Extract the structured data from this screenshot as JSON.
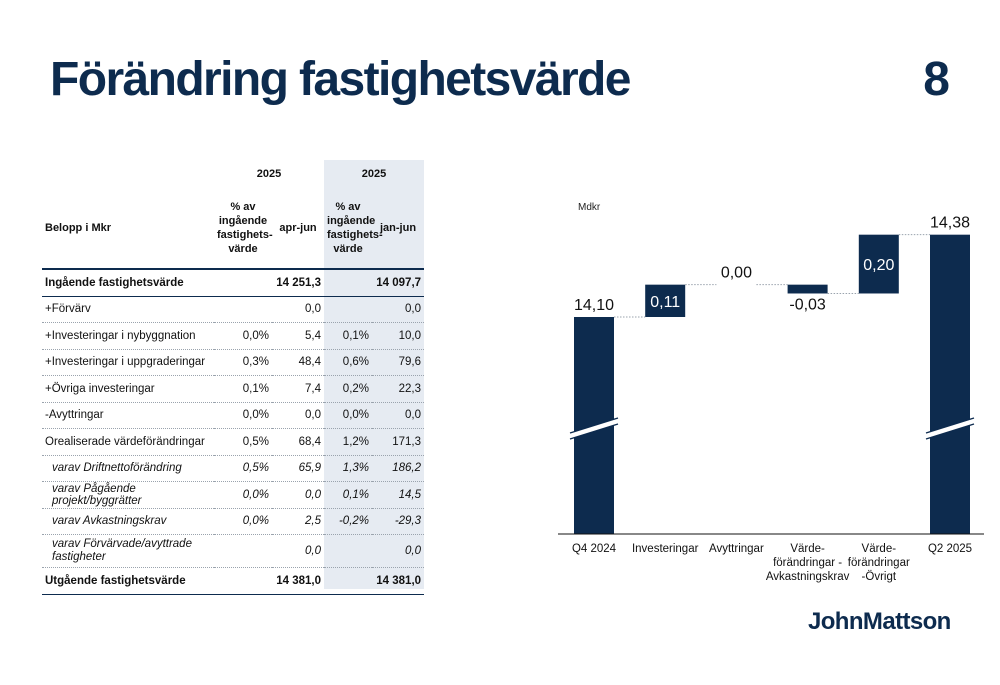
{
  "header": {
    "title": "Förändring fastighetsvärde",
    "page_number": "8"
  },
  "table": {
    "year_left": "2025",
    "year_right": "2025",
    "col_label": "Belopp i Mkr",
    "col_pct_left": "% av ingående fastighets-värde",
    "col_val_left": "apr-jun",
    "col_pct_right": "% av ingående fastighets-värde",
    "col_val_right": "jan-jun",
    "rows": [
      {
        "label": "Ingående fastighetsvärde",
        "pct1": "",
        "val1": "14 251,3",
        "pct2": "",
        "val2": "14 097,7"
      },
      {
        "label": "+Förvärv",
        "pct1": "",
        "val1": "0,0",
        "pct2": "",
        "val2": "0,0"
      },
      {
        "label": "+Investeringar i nybyggnation",
        "pct1": "0,0%",
        "val1": "5,4",
        "pct2": "0,1%",
        "val2": "10,0"
      },
      {
        "label": "+Investeringar i uppgraderingar",
        "pct1": "0,3%",
        "val1": "48,4",
        "pct2": "0,6%",
        "val2": "79,6"
      },
      {
        "label": "+Övriga investeringar",
        "pct1": "0,1%",
        "val1": "7,4",
        "pct2": "0,2%",
        "val2": "22,3"
      },
      {
        "label": "-Avyttringar",
        "pct1": "0,0%",
        "val1": "0,0",
        "pct2": "0,0%",
        "val2": "0,0"
      },
      {
        "label": "Orealiserade värdeförändringar",
        "pct1": "0,5%",
        "val1": "68,4",
        "pct2": "1,2%",
        "val2": "171,3"
      },
      {
        "label": "varav Driftnettoförändring",
        "pct1": "0,5%",
        "val1": "65,9",
        "pct2": "1,3%",
        "val2": "186,2"
      },
      {
        "label": "varav Pågående projekt/byggrätter",
        "pct1": "0,0%",
        "val1": "0,0",
        "pct2": "0,1%",
        "val2": "14,5"
      },
      {
        "label": "varav Avkastningskrav",
        "pct1": "0,0%",
        "val1": "2,5",
        "pct2": "-0,2%",
        "val2": "-29,3"
      },
      {
        "label": "varav Förvärvade/avyttrade fastigheter",
        "pct1": "",
        "val1": "0,0",
        "pct2": "",
        "val2": "0,0"
      },
      {
        "label": "Utgående fastighetsvärde",
        "pct1": "",
        "val1": "14 381,0",
        "pct2": "",
        "val2": "14 381,0"
      }
    ]
  },
  "chart_data": {
    "type": "waterfall",
    "unit_label": "Mdkr",
    "categories": [
      "Q4 2024",
      "Investeringar",
      "Avyttringar",
      "Värde-\nförändringar -\nAvkastningskrav",
      "Värde-\nförändringar\n-Övrigt",
      "Q2 2025"
    ],
    "values": [
      14.1,
      0.11,
      0.0,
      -0.03,
      0.2,
      14.38
    ],
    "kinds": [
      "total",
      "delta",
      "delta",
      "delta",
      "delta",
      "total"
    ],
    "data_labels": [
      "14,10",
      "0,11",
      "0,00",
      "-0,03",
      "0,20",
      "14,38"
    ],
    "axis_break": true,
    "bar_color": "#0d2b4e"
  },
  "logo": {
    "text": "JohnMattson"
  }
}
